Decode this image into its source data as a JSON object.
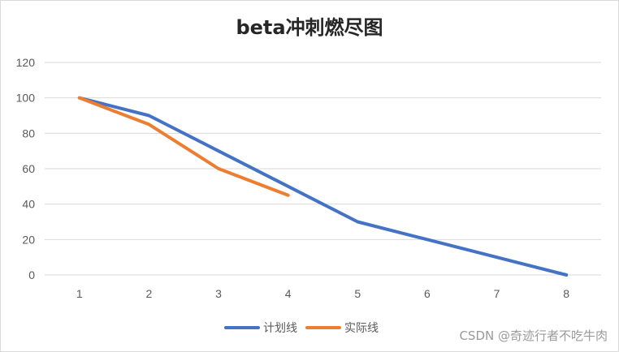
{
  "chart_data": {
    "type": "line",
    "title": "beta冲刺燃尽图",
    "x": [
      "1",
      "2",
      "3",
      "4",
      "5",
      "6",
      "7",
      "8"
    ],
    "yticks": [
      "0",
      "20",
      "40",
      "60",
      "80",
      "100",
      "120"
    ],
    "ylim": [
      0,
      120
    ],
    "grid": true,
    "legend_position": "bottom",
    "series": [
      {
        "name": "计划线",
        "color": "#4472C4",
        "values": [
          100,
          90,
          70,
          50,
          30,
          20,
          10,
          0
        ]
      },
      {
        "name": "实际线",
        "color": "#ED7D31",
        "values": [
          100,
          85,
          60,
          45,
          null,
          null,
          null,
          null
        ]
      }
    ]
  },
  "watermark": "CSDN @奇迹行者不吃牛肉"
}
